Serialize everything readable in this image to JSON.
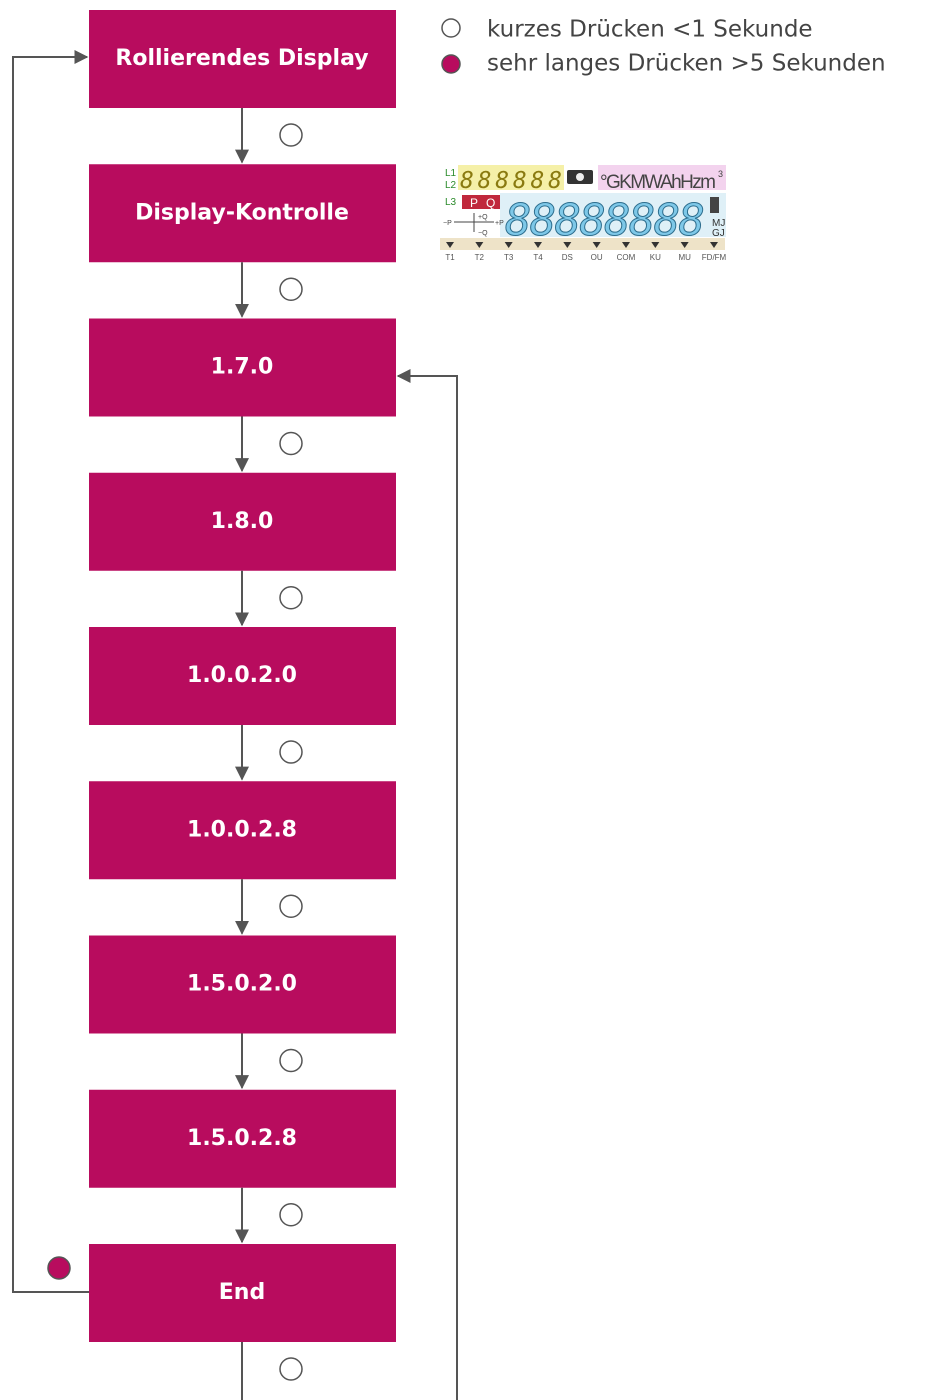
{
  "legend": [
    {
      "label": "kurzes Drücken <1 Sekunde"
    },
    {
      "label": "sehr langes Drücken >5 Sekunden"
    }
  ],
  "nodes": [
    {
      "label": "Rollierendes Display"
    },
    {
      "label": "Display-Kontrolle"
    },
    {
      "label": "1.7.0"
    },
    {
      "label": "1.8.0"
    },
    {
      "label": "1.0.0.2.0"
    },
    {
      "label": "1.0.0.2.8"
    },
    {
      "label": "1.5.0.2.0"
    },
    {
      "label": "1.5.0.2.8"
    },
    {
      "label": "End"
    }
  ],
  "lcd": {
    "phase_labels": [
      "L1",
      "L2",
      "L3"
    ],
    "small_digits": "888888",
    "units": "°GKMWAhHzm",
    "units_exponent": "3",
    "pq_labels": [
      "P",
      "Q"
    ],
    "quadrant_labels": [
      "+Q",
      "−Q",
      "−P",
      "+P"
    ],
    "big_digits": "88888888",
    "energy_units": [
      "MJ",
      "GJ"
    ],
    "indicators": [
      "T1",
      "T2",
      "T3",
      "T4",
      "DS",
      "OU",
      "COM",
      "KU",
      "MU",
      "FD/FM"
    ]
  }
}
